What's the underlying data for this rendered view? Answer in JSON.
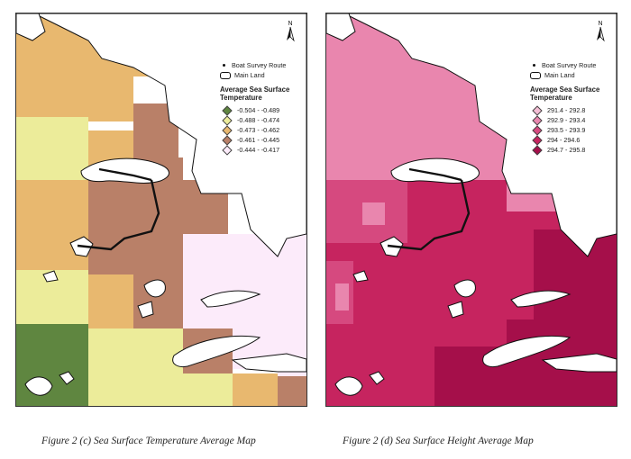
{
  "north_label": "N",
  "legend_items": {
    "survey": "Boat Survey Route",
    "land": "Main Land"
  },
  "legend_title": "Average Sea Surface Temperature",
  "panel_c": {
    "classes": [
      {
        "label": "-0.504 - -0.489",
        "color": "#5f8640"
      },
      {
        "label": "-0.488 - -0.474",
        "color": "#ecec9a"
      },
      {
        "label": "-0.473 - -0.462",
        "color": "#e8b86f"
      },
      {
        "label": "-0.461 - -0.445",
        "color": "#b98068"
      },
      {
        "label": "-0.444 - -0.417",
        "color": "#fcebfa"
      }
    ],
    "caption": "Figure 2 (c) Sea Surface Temperature Average Map"
  },
  "panel_d": {
    "classes": [
      {
        "label": "291.4 - 292.8",
        "color": "#f4bdd4"
      },
      {
        "label": "292.9 - 293.4",
        "color": "#e986ae"
      },
      {
        "label": "293.5 - 293.9",
        "color": "#d6497f"
      },
      {
        "label": "294 - 294.6",
        "color": "#c6245f"
      },
      {
        "label": "294.7 - 295.8",
        "color": "#a50f4a"
      }
    ],
    "caption": "Figure 2 (d) Sea Surface Height Average Map"
  }
}
